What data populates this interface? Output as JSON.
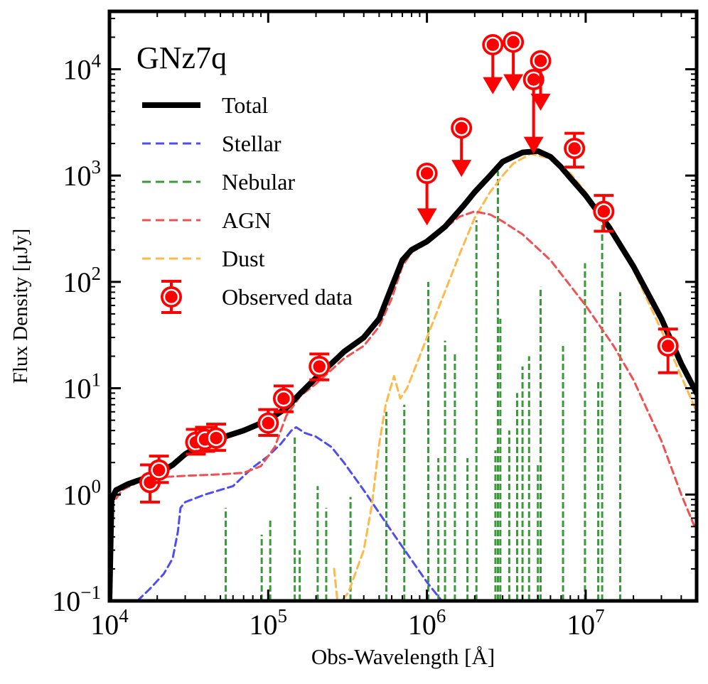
{
  "chart_data": {
    "type": "line",
    "title": "GNz7q",
    "xlabel": "Obs-Wavelength [Å]",
    "ylabel": "Flux Density [μJy]",
    "xscale": "log",
    "yscale": "log",
    "xlim": [
      10000,
      50000000
    ],
    "ylim": [
      0.1,
      35000
    ],
    "grid": false,
    "legend_position": "top-left",
    "x_ticks": [
      {
        "value": 10000,
        "base": "10",
        "exp": "4"
      },
      {
        "value": 100000,
        "base": "10",
        "exp": "5"
      },
      {
        "value": 1000000,
        "base": "10",
        "exp": "6"
      },
      {
        "value": 10000000,
        "base": "10",
        "exp": "7"
      }
    ],
    "y_ticks": [
      {
        "value": 0.1,
        "base": "10",
        "exp": "−1"
      },
      {
        "value": 1,
        "base": "10",
        "exp": "0"
      },
      {
        "value": 10,
        "base": "10",
        "exp": "1"
      },
      {
        "value": 100,
        "base": "10",
        "exp": "2"
      },
      {
        "value": 1000,
        "base": "10",
        "exp": "3"
      },
      {
        "value": 10000,
        "base": "10",
        "exp": "4"
      }
    ],
    "legend": [
      {
        "label": "Total",
        "color": "#000000",
        "style": "solid-thick"
      },
      {
        "label": "Stellar",
        "color": "#4d4df0",
        "style": "dashed"
      },
      {
        "label": "Nebular",
        "color": "#3a9a3a",
        "style": "dashed"
      },
      {
        "label": "AGN",
        "color": "#f05050",
        "style": "dashed"
      },
      {
        "label": "Dust",
        "color": "#ffb84a",
        "style": "dashed"
      },
      {
        "label": "Observed data",
        "color": "#ff0000",
        "style": "marker"
      }
    ],
    "series": [
      {
        "name": "Total",
        "color": "#000000",
        "points": [
          [
            10000,
            0.1
          ],
          [
            10300,
            0.9
          ],
          [
            11000,
            1.1
          ],
          [
            13000,
            1.25
          ],
          [
            15000,
            1.35
          ],
          [
            20000,
            1.55
          ],
          [
            25000,
            1.9
          ],
          [
            30000,
            2.4
          ],
          [
            35000,
            2.75
          ],
          [
            40000,
            3.0
          ],
          [
            50000,
            3.4
          ],
          [
            70000,
            4.0
          ],
          [
            100000,
            5.0
          ],
          [
            130000,
            6.5
          ],
          [
            160000,
            9.0
          ],
          [
            200000,
            12.5
          ],
          [
            250000,
            17.0
          ],
          [
            300000,
            22.0
          ],
          [
            400000,
            30.0
          ],
          [
            500000,
            45.0
          ],
          [
            600000,
            90.0
          ],
          [
            700000,
            160.0
          ],
          [
            800000,
            200.0
          ],
          [
            1000000,
            240.0
          ],
          [
            1300000,
            330.0
          ],
          [
            1700000,
            520.0
          ],
          [
            2000000,
            700.0
          ],
          [
            2500000,
            1000.0
          ],
          [
            3000000,
            1350.0
          ],
          [
            4000000,
            1650.0
          ],
          [
            5000000,
            1700.0
          ],
          [
            6000000,
            1500.0
          ],
          [
            7000000,
            1200.0
          ],
          [
            8000000,
            950.0
          ],
          [
            10000000,
            650.0
          ],
          [
            14000000,
            330.0
          ],
          [
            20000000,
            140.0
          ],
          [
            30000000,
            45.0
          ],
          [
            40000000,
            17.0
          ],
          [
            50000000,
            9.0
          ]
        ]
      },
      {
        "name": "Stellar",
        "color": "#4d4df0",
        "points": [
          [
            12000,
            0.07
          ],
          [
            15000,
            0.1
          ],
          [
            18000,
            0.13
          ],
          [
            22000,
            0.18
          ],
          [
            25000,
            0.25
          ],
          [
            27000,
            0.45
          ],
          [
            28000,
            0.75
          ],
          [
            30000,
            0.85
          ],
          [
            40000,
            1.0
          ],
          [
            60000,
            1.2
          ],
          [
            80000,
            1.8
          ],
          [
            100000,
            2.3
          ],
          [
            120000,
            3.0
          ],
          [
            140000,
            4.0
          ],
          [
            150000,
            4.3
          ],
          [
            170000,
            3.8
          ],
          [
            200000,
            3.5
          ],
          [
            250000,
            2.8
          ],
          [
            300000,
            2.0
          ],
          [
            400000,
            1.1
          ],
          [
            600000,
            0.45
          ],
          [
            1000000,
            0.15
          ],
          [
            1500000,
            0.07
          ]
        ]
      },
      {
        "name": "AGN",
        "color": "#f05050",
        "points": [
          [
            10000,
            0.75
          ],
          [
            12000,
            1.1
          ],
          [
            15000,
            1.3
          ],
          [
            20000,
            1.45
          ],
          [
            30000,
            1.5
          ],
          [
            50000,
            1.55
          ],
          [
            70000,
            1.6
          ],
          [
            90000,
            1.85
          ],
          [
            110000,
            2.8
          ],
          [
            130000,
            5.5
          ],
          [
            160000,
            8.5
          ],
          [
            200000,
            11.0
          ],
          [
            300000,
            19.0
          ],
          [
            400000,
            25.0
          ],
          [
            500000,
            38.0
          ],
          [
            600000,
            70.0
          ],
          [
            700000,
            140.0
          ],
          [
            800000,
            190.0
          ],
          [
            1000000,
            230.0
          ],
          [
            1300000,
            320.0
          ],
          [
            1600000,
            410.0
          ],
          [
            2000000,
            460.0
          ],
          [
            2500000,
            430.0
          ],
          [
            3000000,
            370.0
          ],
          [
            4000000,
            280.0
          ],
          [
            6000000,
            160.0
          ],
          [
            10000000,
            60.0
          ],
          [
            15000000,
            25.0
          ],
          [
            20000000,
            12.0
          ],
          [
            30000000,
            3.2
          ],
          [
            40000000,
            1.0
          ],
          [
            50000000,
            0.45
          ]
        ]
      },
      {
        "name": "Dust",
        "color": "#ffb84a",
        "points": [
          [
            260000,
            0.2
          ],
          [
            275000,
            0.09
          ],
          [
            320000,
            0.12
          ],
          [
            400000,
            0.3
          ],
          [
            450000,
            0.8
          ],
          [
            500000,
            3.0
          ],
          [
            550000,
            7.0
          ],
          [
            620000,
            13.0
          ],
          [
            680000,
            8.0
          ],
          [
            750000,
            10.0
          ],
          [
            900000,
            20.0
          ],
          [
            1200000,
            60.0
          ],
          [
            1600000,
            180.0
          ],
          [
            2000000,
            400.0
          ],
          [
            2500000,
            700.0
          ],
          [
            3000000,
            1000.0
          ],
          [
            3500000,
            1300.0
          ],
          [
            4500000,
            1600.0
          ],
          [
            6000000,
            1450.0
          ],
          [
            8000000,
            1050.0
          ],
          [
            10000000,
            700.0
          ],
          [
            14000000,
            330.0
          ],
          [
            20000000,
            130.0
          ],
          [
            30000000,
            35.0
          ],
          [
            50000000,
            6.0
          ]
        ]
      },
      {
        "name": "Nebular",
        "color": "#3a9a3a",
        "type": "emission-lines",
        "lines": [
          [
            54000,
            0.75
          ],
          [
            91000,
            0.42
          ],
          [
            103000,
            0.6
          ],
          [
            147000,
            3.6
          ],
          [
            158000,
            0.3
          ],
          [
            205000,
            1.2
          ],
          [
            232000,
            0.75
          ],
          [
            330000,
            0.95
          ],
          [
            555000,
            6.0
          ],
          [
            720000,
            7.0
          ],
          [
            1020000,
            100.0
          ],
          [
            1180000,
            2.2
          ],
          [
            1300000,
            28.0
          ],
          [
            1500000,
            22.0
          ],
          [
            1800000,
            2.2
          ],
          [
            2050000,
            380.0
          ],
          [
            2700000,
            2.6
          ],
          [
            2800000,
            1100.0
          ],
          [
            2900000,
            45.0
          ],
          [
            3300000,
            4.0
          ],
          [
            3700000,
            9.0
          ],
          [
            4000000,
            16.0
          ],
          [
            4400000,
            20.0
          ],
          [
            5000000,
            2.0
          ],
          [
            5200000,
            90.0
          ],
          [
            7200000,
            25.0
          ],
          [
            9900000,
            150.0
          ],
          [
            12000000,
            12.0
          ],
          [
            12700000,
            350.0
          ],
          [
            16500000,
            80.0
          ]
        ]
      }
    ],
    "observed_data": [
      {
        "x": 18000,
        "y": 1.3,
        "err_lo": 0.85,
        "err_hi": 1.9
      },
      {
        "x": 20500,
        "y": 1.7,
        "err_lo": 1.3,
        "err_hi": 2.3
      },
      {
        "x": 35000,
        "y": 3.1,
        "err_lo": 2.4,
        "err_hi": 4.1
      },
      {
        "x": 40000,
        "y": 3.3,
        "err_lo": 2.55,
        "err_hi": 4.3
      },
      {
        "x": 47000,
        "y": 3.4,
        "err_lo": 2.6,
        "err_hi": 4.6
      },
      {
        "x": 100000,
        "y": 4.7,
        "err_lo": 3.6,
        "err_hi": 6.3
      },
      {
        "x": 125000,
        "y": 8.0,
        "err_lo": 6.0,
        "err_hi": 10.5
      },
      {
        "x": 210000,
        "y": 16.0,
        "err_lo": 12.0,
        "err_hi": 21.0
      },
      {
        "x": 8500000,
        "y": 1800,
        "err_lo": 1200,
        "err_hi": 2500
      },
      {
        "x": 13000000,
        "y": 460,
        "err_lo": 300,
        "err_hi": 650
      },
      {
        "x": 33000000,
        "y": 25,
        "err_lo": 14,
        "err_hi": 36
      }
    ],
    "upper_limits": [
      {
        "x": 1000000,
        "y": 1050,
        "arrow_to": 350
      },
      {
        "x": 1650000,
        "y": 2800,
        "arrow_to": 1000
      },
      {
        "x": 2600000,
        "y": 17000,
        "arrow_to": 6000
      },
      {
        "x": 3500000,
        "y": 18000,
        "arrow_to": 6400
      },
      {
        "x": 4700000,
        "y": 8000,
        "arrow_to": 1650
      },
      {
        "x": 5200000,
        "y": 12000,
        "arrow_to": 4200
      }
    ]
  }
}
